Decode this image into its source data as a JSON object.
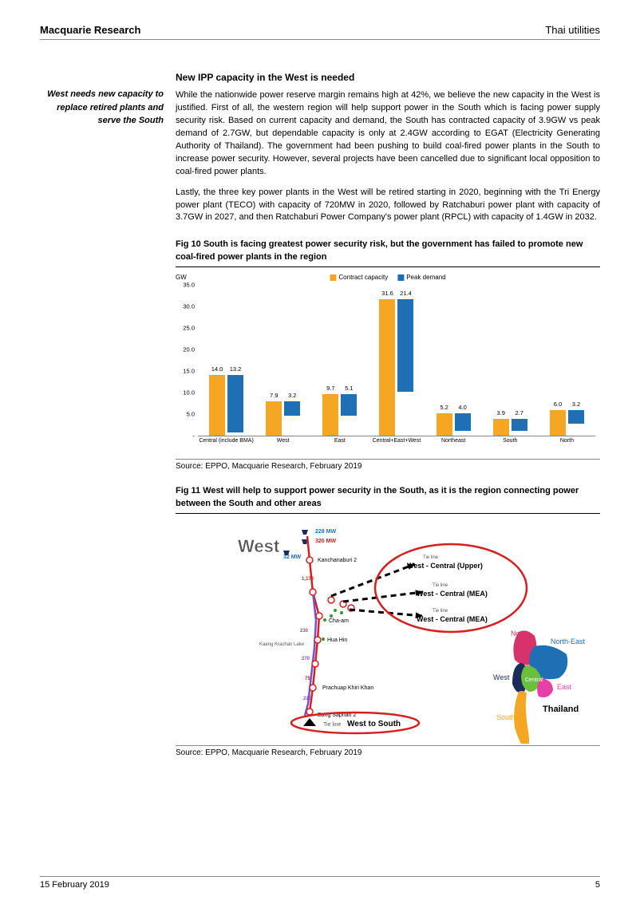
{
  "header": {
    "left": "Macquarie Research",
    "right": "Thai utilities"
  },
  "sidebar_note": "West needs new capacity to replace retired plants and serve the South",
  "section_title": "New IPP capacity in the West is needed",
  "para1": "While the nationwide power reserve margin remains high at 42%, we believe the new capacity in the West is justified. First of all, the western region will help support power in the South which is facing power supply security risk. Based on current capacity and demand, the South has contracted capacity of 3.9GW vs peak demand of 2.7GW, but dependable capacity is only at 2.4GW according to EGAT (Electricity Generating Authority of Thailand). The government had been pushing to build coal-fired power plants in the South to increase power security. However, several projects have been cancelled due to significant local opposition to coal-fired power plants.",
  "para2": "Lastly, the three key power plants in the West will be retired starting in 2020, beginning with the Tri Energy power plant (TECO) with capacity of 720MW in 2020, followed by Ratchaburi power plant with capacity of 3.7GW in 2027, and then Ratchaburi Power Company's power plant (RPCL) with capacity of 1.4GW in 2032.",
  "fig10": {
    "title": "Fig 10   South is facing greatest power security risk, but the government has failed to promote new coal-fired power plants in the region",
    "y_axis_label": "GW",
    "legend": [
      {
        "label": "Contract capacity",
        "color": "#f5a623"
      },
      {
        "label": "Peak demand",
        "color": "#1f6fb5"
      }
    ],
    "y_ticks": [
      "-",
      "5.0",
      "10.0",
      "15.0",
      "20.0",
      "25.0",
      "30.0",
      "35.0"
    ],
    "y_max": 35,
    "categories": [
      "Central (include BMA)",
      "West",
      "East",
      "Central+East+West",
      "Northeast",
      "South",
      "North"
    ],
    "series": {
      "contract": [
        14.0,
        7.9,
        9.7,
        31.6,
        5.2,
        3.9,
        6.0
      ],
      "peak": [
        13.2,
        3.2,
        5.1,
        21.4,
        4.0,
        2.7,
        3.2
      ]
    },
    "colors": {
      "contract": "#f5a623",
      "peak": "#1f6fb5"
    },
    "source": "Source: EPPO, Macquarie Research, February 2019"
  },
  "fig11": {
    "title": "Fig 11   West will help to support power security in the South, as it is the region connecting power between the South and other areas",
    "west_label": "West",
    "tie_line_label": "Tie line",
    "connections": {
      "upper": "West - Central (Upper)",
      "mea1": "West - Central (MEA)",
      "mea2": "West - Central (MEA)"
    },
    "bottom_label": "West to South",
    "bottom_prefix": "Tie line",
    "power_labels": {
      "a": "228 MW",
      "b": "320 MW",
      "c": "32 MW"
    },
    "places": {
      "kanchanaburi": "Kanchanaburi 2",
      "chaam": "Cha-am",
      "huahin": "Hua Hin",
      "prachuap": "Prachuap Khiri Khan",
      "bangsaphan": "Bang Saphan 2"
    },
    "regions": {
      "north": "North",
      "northeast": "North-East",
      "west": "West",
      "central": "Central",
      "east": "East",
      "south": "South",
      "country": "Thailand"
    },
    "colors": {
      "north": "#d6336c",
      "northeast": "#1f6fb5",
      "west": "#1a2d5a",
      "central": "#6bbf3a",
      "east": "#e63fa8",
      "south": "#f5a623",
      "circle": "#d62020",
      "line1": "#d62020",
      "line2": "#7a4dd6"
    },
    "source": "Source: EPPO, Macquarie Research,  February 2019"
  },
  "footer": {
    "date": "15 February 2019",
    "page": "5"
  }
}
